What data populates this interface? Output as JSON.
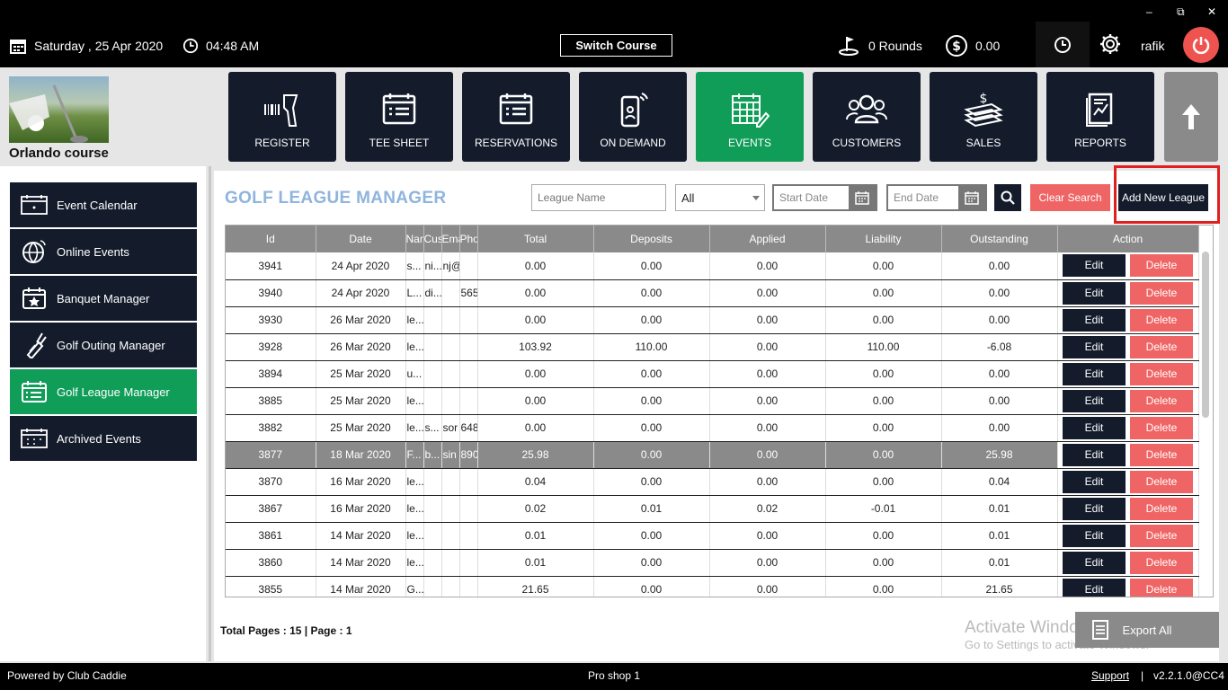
{
  "topbar": {
    "date": "Saturday ,  25 Apr 2020",
    "time": "04:48 AM",
    "switch_course": "Switch Course",
    "rounds": "0 Rounds",
    "amount": "0.00",
    "user": "rafik",
    "window_controls": [
      "–",
      "⧉",
      "✕"
    ]
  },
  "course": {
    "name": "Orlando course"
  },
  "nav": [
    {
      "label": "REGISTER",
      "icon": "barcode-scanner-icon"
    },
    {
      "label": "TEE SHEET",
      "icon": "calendar-list-icon"
    },
    {
      "label": "RESERVATIONS",
      "icon": "calendar-list-icon"
    },
    {
      "label": "ON DEMAND",
      "icon": "phone-icon"
    },
    {
      "label": "EVENTS",
      "icon": "calendar-edit-icon",
      "active": true
    },
    {
      "label": "CUSTOMERS",
      "icon": "users-icon"
    },
    {
      "label": "SALES",
      "icon": "money-stack-icon"
    },
    {
      "label": "REPORTS",
      "icon": "report-icon"
    }
  ],
  "sidebar": [
    {
      "label": "Event Calendar",
      "icon": "calendar-icon"
    },
    {
      "label": "Online Events",
      "icon": "globe-icon"
    },
    {
      "label": "Banquet Manager",
      "icon": "calendar-star-icon"
    },
    {
      "label": "Golf Outing Manager",
      "icon": "golf-bag-icon"
    },
    {
      "label": "Golf League Manager",
      "icon": "calendar-list-icon",
      "active": true
    },
    {
      "label": "Archived Events",
      "icon": "archive-calendar-icon"
    }
  ],
  "main": {
    "title": "GOLF LEAGUE MANAGER",
    "league_name_placeholder": "League Name",
    "filter_value": "All",
    "start_date_placeholder": "Start Date",
    "end_date_placeholder": "End Date",
    "clear_search": "Clear Search",
    "add_new_league": "Add New League",
    "columns": [
      "Id",
      "Date",
      "Nam",
      "Cus",
      "Ema",
      "Pho",
      "Total",
      "Deposits",
      "Applied",
      "Liability",
      "Outstanding",
      "Action"
    ],
    "edit_label": "Edit",
    "delete_label": "Delete",
    "rows": [
      [
        "3941",
        "24 Apr 2020",
        "s...",
        "ni...",
        "nj@",
        "",
        "0.00",
        "0.00",
        "0.00",
        "0.00",
        "0.00"
      ],
      [
        "3940",
        "24 Apr 2020",
        "L...",
        "di...",
        "",
        "565",
        "0.00",
        "0.00",
        "0.00",
        "0.00",
        "0.00"
      ],
      [
        "3930",
        "26 Mar 2020",
        "le...",
        "",
        "",
        "",
        "0.00",
        "0.00",
        "0.00",
        "0.00",
        "0.00"
      ],
      [
        "3928",
        "26 Mar 2020",
        "le...",
        "",
        "",
        "",
        "103.92",
        "110.00",
        "0.00",
        "110.00",
        "-6.08"
      ],
      [
        "3894",
        "25 Mar 2020",
        "u...",
        "",
        "",
        "",
        "0.00",
        "0.00",
        "0.00",
        "0.00",
        "0.00"
      ],
      [
        "3885",
        "25 Mar 2020",
        "le...",
        "",
        "",
        "",
        "0.00",
        "0.00",
        "0.00",
        "0.00",
        "0.00"
      ],
      [
        "3882",
        "25 Mar 2020",
        "le...",
        "s...",
        "sor",
        "648",
        "0.00",
        "0.00",
        "0.00",
        "0.00",
        "0.00"
      ],
      [
        "3877",
        "18 Mar 2020",
        "F...",
        "b...",
        "sin",
        "890",
        "25.98",
        "0.00",
        "0.00",
        "0.00",
        "25.98"
      ],
      [
        "3870",
        "16 Mar 2020",
        "le...",
        "",
        "",
        "",
        "0.04",
        "0.00",
        "0.00",
        "0.00",
        "0.04"
      ],
      [
        "3867",
        "16 Mar 2020",
        "le...",
        "",
        "",
        "",
        "0.02",
        "0.01",
        "0.02",
        "-0.01",
        "0.01"
      ],
      [
        "3861",
        "14 Mar 2020",
        "le...",
        "",
        "",
        "",
        "0.01",
        "0.00",
        "0.00",
        "0.00",
        "0.01"
      ],
      [
        "3860",
        "14 Mar 2020",
        "le...",
        "",
        "",
        "",
        "0.01",
        "0.00",
        "0.00",
        "0.00",
        "0.01"
      ],
      [
        "3855",
        "14 Mar 2020",
        "G...",
        "",
        "",
        "",
        "21.65",
        "0.00",
        "0.00",
        "0.00",
        "21.65"
      ]
    ],
    "selected_row": 7,
    "page_info": "Total Pages : 15 | Page : 1",
    "export_all": "Export All"
  },
  "watermark": {
    "line1": "Activate Windows",
    "line2": "Go to Settings to activate Windows."
  },
  "footer": {
    "powered_by": "Powered by Club Caddie",
    "location": "Pro shop 1",
    "support": "Support",
    "separator": "|",
    "version": "v2.2.1.0@CC4"
  },
  "colors": {
    "dark_navy": "#141c2c",
    "active_green": "#0f9d58",
    "danger_red": "#ef6464",
    "header_gray": "#8a8a8a",
    "title_blue": "#8fb4dd"
  }
}
